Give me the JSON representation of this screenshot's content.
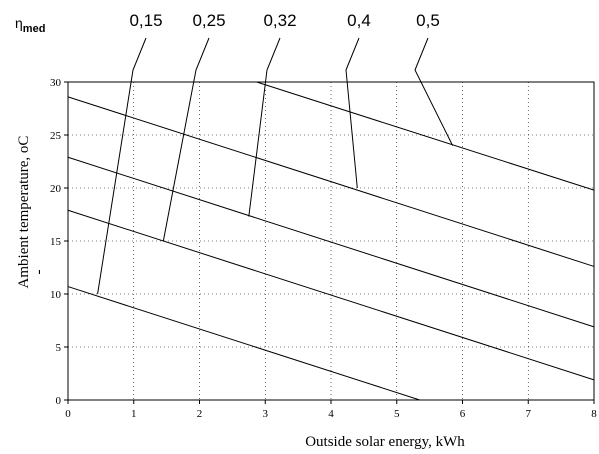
{
  "chart_data": {
    "type": "line",
    "title": "",
    "xlabel": "Outside solar energy, kWh",
    "ylabel_main": "Ambient temperature, ",
    "ylabel_unit": "oC",
    "ylabel_extra": "-",
    "xlim": [
      0,
      8
    ],
    "ylim": [
      0,
      30
    ],
    "x_ticks": [
      0,
      1,
      2,
      3,
      4,
      5,
      6,
      7,
      8
    ],
    "y_ticks": [
      0,
      5,
      10,
      15,
      20,
      25,
      30
    ],
    "x_tick_labels": [
      "0",
      "1",
      "2",
      "3",
      "4",
      "5",
      "6",
      "7",
      "8"
    ],
    "y_tick_labels": [
      "0",
      "5",
      "10",
      "15",
      "20",
      "25",
      "30"
    ],
    "grid": true,
    "legend_title": "η",
    "legend_title_sub": "med",
    "series": [
      {
        "name": "0,15",
        "points": [
          [
            0,
            10.7
          ],
          [
            5.35,
            0
          ]
        ],
        "anchor": [
          0.45,
          10.0
        ]
      },
      {
        "name": "0,25",
        "points": [
          [
            0,
            17.9
          ],
          [
            8,
            1.9
          ]
        ],
        "anchor": [
          1.45,
          15.0
        ]
      },
      {
        "name": "0,32",
        "points": [
          [
            0,
            22.9
          ],
          [
            8,
            6.9
          ]
        ],
        "anchor": [
          2.75,
          17.3
        ]
      },
      {
        "name": "0,4",
        "points": [
          [
            0,
            28.6
          ],
          [
            8,
            12.6
          ]
        ],
        "anchor": [
          4.4,
          20.0
        ]
      },
      {
        "name": "0,5",
        "points": [
          [
            2.87,
            30.0
          ],
          [
            8,
            19.8
          ]
        ],
        "anchor": [
          5.85,
          24.0
        ]
      }
    ]
  }
}
